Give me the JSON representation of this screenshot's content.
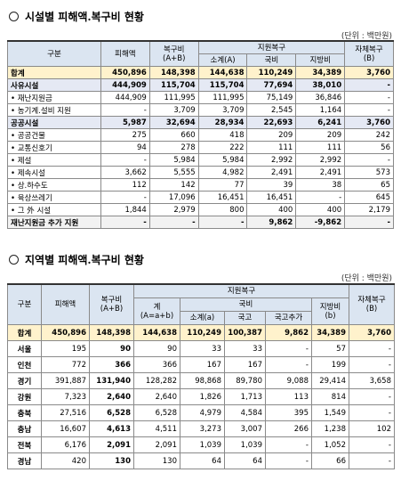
{
  "section1": {
    "title": "시설별 피해액.복구비 현황",
    "unit": "(단위 : 백만원)",
    "header": {
      "category": "구분",
      "damage": "피해액",
      "recovery": [
        "복구비",
        "(A+B)"
      ],
      "support": "지원복구",
      "self": [
        "자체복구",
        "(B)"
      ],
      "subtotal": "소계(A)",
      "national": "국비",
      "local": "지방비"
    },
    "rows": [
      [
        "합계",
        "450,896",
        "148,398",
        "144,638",
        "110,249",
        "34,389",
        "3,760"
      ],
      [
        "사유시설",
        "444,909",
        "115,704",
        "115,704",
        "77,694",
        "38,010",
        "-"
      ],
      [
        "• 재난지원금",
        "444,909",
        "111,995",
        "111,995",
        "75,149",
        "36,846",
        "-"
      ],
      [
        "• 농기계.설비 지원",
        "-",
        "3,709",
        "3,709",
        "2,545",
        "1,164",
        "-"
      ],
      [
        "공공시설",
        "5,987",
        "32,694",
        "28,934",
        "22,693",
        "6,241",
        "3,760"
      ],
      [
        "• 공공건물",
        "275",
        "660",
        "418",
        "209",
        "209",
        "242"
      ],
      [
        "• 교통신호기",
        "94",
        "278",
        "222",
        "111",
        "111",
        "56"
      ],
      [
        "• 제설",
        "-",
        "5,984",
        "5,984",
        "2,992",
        "2,992",
        "-"
      ],
      [
        "• 제속시설",
        "3,662",
        "5,555",
        "4,982",
        "2,491",
        "2,491",
        "573"
      ],
      [
        "• 상.하수도",
        "112",
        "142",
        "77",
        "39",
        "38",
        "65"
      ],
      [
        "• 육상쓰레기",
        "-",
        "17,096",
        "16,451",
        "16,451",
        "-",
        "645"
      ],
      [
        "• 그 外 시설",
        "1,844",
        "2,979",
        "800",
        "400",
        "400",
        "2,179"
      ],
      [
        "재난지원금 추가 지원",
        "-",
        "-",
        "-",
        "9,862",
        "-9,862",
        "-"
      ]
    ]
  },
  "section2": {
    "title": "지역별 피해액.복구비 현황",
    "unit": "(단위 : 백만원)",
    "header": {
      "category": "구분",
      "damage": "피해액",
      "recovery": [
        "복구비",
        "(A+B)"
      ],
      "support": "지원복구",
      "self": [
        "자체복구",
        "(B)"
      ],
      "total": [
        "계",
        "(A=a+b)"
      ],
      "national": "국비",
      "local": [
        "지방비",
        "(b)"
      ],
      "subtotal": "소계(a)",
      "treasury": "국고",
      "treasury_extra": "국고추가"
    },
    "rows": [
      [
        "합계",
        "450,896",
        "148,398",
        "144,638",
        "110,249",
        "100,387",
        "9,862",
        "34,389",
        "3,760"
      ],
      [
        "서울",
        "195",
        "90",
        "90",
        "33",
        "33",
        "-",
        "57",
        "-"
      ],
      [
        "인천",
        "772",
        "366",
        "366",
        "167",
        "167",
        "-",
        "199",
        "-"
      ],
      [
        "경기",
        "391,887",
        "131,940",
        "128,282",
        "98,868",
        "89,780",
        "9,088",
        "29,414",
        "3,658"
      ],
      [
        "강원",
        "7,323",
        "2,640",
        "2,640",
        "1,826",
        "1,713",
        "113",
        "814",
        "-"
      ],
      [
        "충북",
        "27,516",
        "6,528",
        "6,528",
        "4,979",
        "4,584",
        "395",
        "1,549",
        "-"
      ],
      [
        "충남",
        "16,607",
        "4,613",
        "4,511",
        "3,273",
        "3,007",
        "266",
        "1,238",
        "102"
      ],
      [
        "전북",
        "6,176",
        "2,091",
        "2,091",
        "1,039",
        "1,039",
        "-",
        "1,052",
        "-"
      ],
      [
        "경남",
        "420",
        "130",
        "130",
        "64",
        "64",
        "-",
        "66",
        "-"
      ]
    ]
  }
}
